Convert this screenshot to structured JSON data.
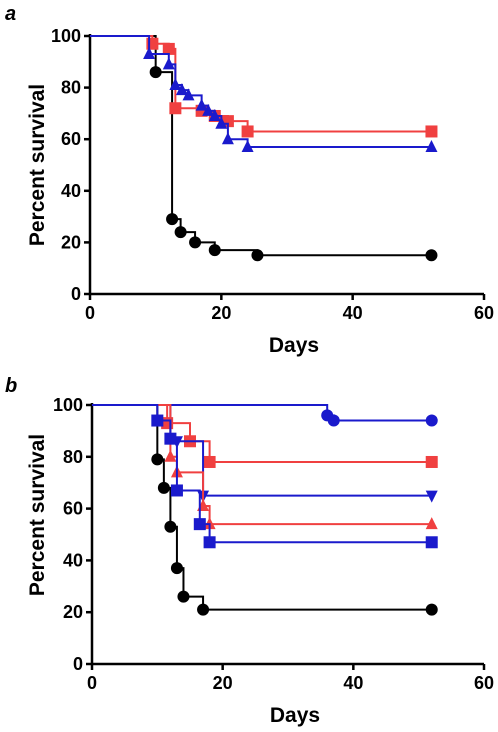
{
  "chart_data": [
    {
      "panel_label": "a",
      "type": "line",
      "step": true,
      "xlabel": "Days",
      "ylabel": "Percent survival",
      "xlim": [
        0,
        60
      ],
      "ylim": [
        0,
        100
      ],
      "xticks": [
        0,
        20,
        40,
        60
      ],
      "yticks": [
        0,
        20,
        40,
        60,
        80,
        100
      ],
      "series": [
        {
          "color": "#000000",
          "marker": "circle",
          "points": [
            [
              0,
              100
            ],
            [
              10,
              86
            ],
            [
              12.5,
              29
            ],
            [
              13.8,
              24
            ],
            [
              16,
              20
            ],
            [
              19,
              17
            ],
            [
              25.5,
              15
            ],
            [
              52,
              15
            ]
          ]
        },
        {
          "color": "#f04040",
          "marker": "square",
          "points": [
            [
              0,
              100
            ],
            [
              9.5,
              97
            ],
            [
              12,
              95
            ],
            [
              13,
              72
            ],
            [
              17,
              71
            ],
            [
              19,
              69
            ],
            [
              21,
              67
            ],
            [
              24,
              63
            ],
            [
              52,
              63
            ]
          ]
        },
        {
          "color": "#1a1acc",
          "marker": "triangle-up",
          "points": [
            [
              0,
              100
            ],
            [
              9,
              93
            ],
            [
              12,
              89
            ],
            [
              13,
              81
            ],
            [
              14,
              79
            ],
            [
              15,
              77
            ],
            [
              17,
              73
            ],
            [
              18,
              71
            ],
            [
              19,
              69
            ],
            [
              20,
              66
            ],
            [
              21,
              60
            ],
            [
              24,
              57
            ],
            [
              52,
              57
            ]
          ]
        }
      ]
    },
    {
      "panel_label": "b",
      "type": "line",
      "step": true,
      "xlabel": "Days",
      "ylabel": "Percent survival",
      "xlim": [
        0,
        60
      ],
      "ylim": [
        0,
        100
      ],
      "xticks": [
        0,
        20,
        40,
        60
      ],
      "yticks": [
        0,
        20,
        40,
        60,
        80,
        100
      ],
      "series": [
        {
          "color": "#000000",
          "marker": "circle",
          "points": [
            [
              0,
              100
            ],
            [
              10,
              79
            ],
            [
              11,
              68
            ],
            [
              12,
              53
            ],
            [
              13,
              37
            ],
            [
              14,
              26
            ],
            [
              17,
              21
            ],
            [
              52,
              21
            ]
          ]
        },
        {
          "color": "#1a1acc",
          "marker": "circle",
          "points": [
            [
              0,
              100
            ],
            [
              36,
              96
            ],
            [
              37,
              94
            ],
            [
              52,
              94
            ]
          ]
        },
        {
          "color": "#f04040",
          "marker": "square",
          "points": [
            [
              0,
              100
            ],
            [
              11.5,
              93
            ],
            [
              15,
              86
            ],
            [
              18,
              78
            ],
            [
              52,
              78
            ]
          ]
        },
        {
          "color": "#1a1acc",
          "marker": "triangle-down",
          "points": [
            [
              0,
              100
            ],
            [
              12,
              87
            ],
            [
              13,
              86
            ],
            [
              17,
              65
            ],
            [
              52,
              65
            ]
          ]
        },
        {
          "color": "#f04040",
          "marker": "triangle-up",
          "points": [
            [
              0,
              100
            ],
            [
              12,
              80
            ],
            [
              13,
              74
            ],
            [
              17,
              61
            ],
            [
              18,
              54
            ],
            [
              52,
              54
            ]
          ]
        },
        {
          "color": "#1a1acc",
          "marker": "square",
          "points": [
            [
              0,
              100
            ],
            [
              10,
              94
            ],
            [
              12,
              87
            ],
            [
              13,
              67
            ],
            [
              16.5,
              54
            ],
            [
              18,
              47
            ],
            [
              52,
              47
            ]
          ]
        }
      ]
    }
  ]
}
